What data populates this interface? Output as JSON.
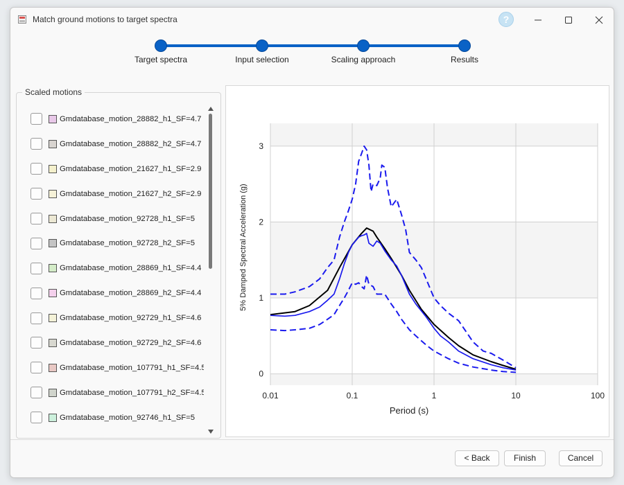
{
  "window": {
    "title": "Match ground motions to target spectra",
    "help_glyph": "?"
  },
  "stepper": {
    "steps": [
      {
        "label": "Target spectra"
      },
      {
        "label": "Input selection"
      },
      {
        "label": "Scaling approach"
      },
      {
        "label": "Results"
      }
    ],
    "accent": "#0a62c6"
  },
  "scaled_motions": {
    "title": "Scaled motions",
    "items": [
      {
        "label": "Gmdatabase_motion_28882_h1_SF=4.7",
        "swatch": "#e8c8e8",
        "checked": false
      },
      {
        "label": "Gmdatabase_motion_28882_h2_SF=4.7",
        "swatch": "#d8d4d0",
        "checked": false
      },
      {
        "label": "Gmdatabase_motion_21627_h1_SF=2.9",
        "swatch": "#f4f0cc",
        "checked": false
      },
      {
        "label": "Gmdatabase_motion_21627_h2_SF=2.9",
        "swatch": "#f6f2d8",
        "checked": false
      },
      {
        "label": "Gmdatabase_motion_92728_h1_SF=5",
        "swatch": "#ece8d4",
        "checked": false
      },
      {
        "label": "Gmdatabase_motion_92728_h2_SF=5",
        "swatch": "#c4c4c4",
        "checked": false
      },
      {
        "label": "Gmdatabase_motion_28869_h1_SF=4.4",
        "swatch": "#d4ecc8",
        "checked": false
      },
      {
        "label": "Gmdatabase_motion_28869_h2_SF=4.4",
        "swatch": "#f4d0ec",
        "checked": false
      },
      {
        "label": "Gmdatabase_motion_92729_h1_SF=4.6",
        "swatch": "#f4f2d8",
        "checked": false
      },
      {
        "label": "Gmdatabase_motion_92729_h2_SF=4.6",
        "swatch": "#d8d8d0",
        "checked": false
      },
      {
        "label": "Gmdatabase_motion_107791_h1_SF=4.5",
        "swatch": "#e8c8c4",
        "checked": false
      },
      {
        "label": "Gmdatabase_motion_107791_h2_SF=4.5",
        "swatch": "#d0d4cc",
        "checked": false
      },
      {
        "label": "Gmdatabase_motion_92746_h1_SF=5",
        "swatch": "#ccf0dc",
        "checked": false
      }
    ]
  },
  "chart_data": {
    "type": "line",
    "title": "",
    "xlabel": "Period (s)",
    "ylabel": "5% Damped Spectral Acceleration (g)",
    "xscale": "log",
    "xlim": [
      0.01,
      100
    ],
    "ylim": [
      -0.15,
      3.3
    ],
    "xticks": [
      0.01,
      0.1,
      1,
      10,
      100
    ],
    "xtick_labels": [
      "0.01",
      "0.1",
      "1",
      "10",
      "100"
    ],
    "yticks": [
      0,
      1,
      2,
      3
    ],
    "ytick_labels": [
      "0",
      "1",
      "2",
      "3"
    ],
    "grid": true,
    "legend": "none",
    "series": [
      {
        "color": "#000000",
        "style": "solid",
        "points": [
          [
            0.01,
            0.78
          ],
          [
            0.02,
            0.82
          ],
          [
            0.03,
            0.9
          ],
          [
            0.05,
            1.1
          ],
          [
            0.07,
            1.4
          ],
          [
            0.1,
            1.7
          ],
          [
            0.13,
            1.85
          ],
          [
            0.15,
            1.92
          ],
          [
            0.18,
            1.88
          ],
          [
            0.2,
            1.8
          ],
          [
            0.25,
            1.65
          ],
          [
            0.3,
            1.52
          ],
          [
            0.4,
            1.3
          ],
          [
            0.5,
            1.1
          ],
          [
            0.7,
            0.85
          ],
          [
            1,
            0.65
          ],
          [
            1.5,
            0.48
          ],
          [
            2,
            0.37
          ],
          [
            3,
            0.25
          ],
          [
            5,
            0.16
          ],
          [
            7,
            0.11
          ],
          [
            10,
            0.06
          ]
        ]
      },
      {
        "color": "#1a1aee",
        "style": "solid",
        "points": [
          [
            0.01,
            0.77
          ],
          [
            0.015,
            0.76
          ],
          [
            0.02,
            0.77
          ],
          [
            0.03,
            0.82
          ],
          [
            0.04,
            0.88
          ],
          [
            0.05,
            0.97
          ],
          [
            0.06,
            1.05
          ],
          [
            0.07,
            1.25
          ],
          [
            0.08,
            1.45
          ],
          [
            0.09,
            1.6
          ],
          [
            0.1,
            1.7
          ],
          [
            0.12,
            1.8
          ],
          [
            0.13,
            1.82
          ],
          [
            0.14,
            1.83
          ],
          [
            0.15,
            1.85
          ],
          [
            0.16,
            1.72
          ],
          [
            0.18,
            1.68
          ],
          [
            0.2,
            1.75
          ],
          [
            0.22,
            1.72
          ],
          [
            0.25,
            1.62
          ],
          [
            0.3,
            1.5
          ],
          [
            0.35,
            1.42
          ],
          [
            0.4,
            1.3
          ],
          [
            0.5,
            1.05
          ],
          [
            0.6,
            0.92
          ],
          [
            0.8,
            0.75
          ],
          [
            1,
            0.6
          ],
          [
            1.2,
            0.5
          ],
          [
            1.5,
            0.42
          ],
          [
            2,
            0.3
          ],
          [
            3,
            0.2
          ],
          [
            5,
            0.12
          ],
          [
            7,
            0.08
          ],
          [
            10,
            0.05
          ]
        ]
      },
      {
        "color": "#1a1aee",
        "style": "dashed",
        "points": [
          [
            0.01,
            1.05
          ],
          [
            0.015,
            1.05
          ],
          [
            0.02,
            1.08
          ],
          [
            0.03,
            1.15
          ],
          [
            0.04,
            1.25
          ],
          [
            0.05,
            1.4
          ],
          [
            0.06,
            1.5
          ],
          [
            0.07,
            1.8
          ],
          [
            0.08,
            2.0
          ],
          [
            0.09,
            2.15
          ],
          [
            0.1,
            2.3
          ],
          [
            0.11,
            2.5
          ],
          [
            0.12,
            2.8
          ],
          [
            0.13,
            2.9
          ],
          [
            0.14,
            3.0
          ],
          [
            0.15,
            2.95
          ],
          [
            0.16,
            2.75
          ],
          [
            0.17,
            2.4
          ],
          [
            0.18,
            2.5
          ],
          [
            0.2,
            2.48
          ],
          [
            0.22,
            2.58
          ],
          [
            0.23,
            2.75
          ],
          [
            0.25,
            2.72
          ],
          [
            0.27,
            2.45
          ],
          [
            0.3,
            2.2
          ],
          [
            0.35,
            2.3
          ],
          [
            0.4,
            2.1
          ],
          [
            0.45,
            1.9
          ],
          [
            0.5,
            1.6
          ],
          [
            0.6,
            1.5
          ],
          [
            0.7,
            1.4
          ],
          [
            0.8,
            1.25
          ],
          [
            1,
            1.0
          ],
          [
            1.2,
            0.9
          ],
          [
            1.5,
            0.8
          ],
          [
            2,
            0.7
          ],
          [
            3,
            0.42
          ],
          [
            4,
            0.3
          ],
          [
            5,
            0.27
          ],
          [
            7,
            0.18
          ],
          [
            10,
            0.08
          ]
        ]
      },
      {
        "color": "#1a1aee",
        "style": "dashed",
        "points": [
          [
            0.01,
            0.58
          ],
          [
            0.015,
            0.57
          ],
          [
            0.02,
            0.58
          ],
          [
            0.03,
            0.6
          ],
          [
            0.04,
            0.65
          ],
          [
            0.05,
            0.72
          ],
          [
            0.06,
            0.78
          ],
          [
            0.07,
            0.9
          ],
          [
            0.08,
            1.0
          ],
          [
            0.09,
            1.1
          ],
          [
            0.1,
            1.2
          ],
          [
            0.11,
            1.18
          ],
          [
            0.12,
            1.2
          ],
          [
            0.13,
            1.15
          ],
          [
            0.14,
            1.12
          ],
          [
            0.15,
            1.3
          ],
          [
            0.16,
            1.18
          ],
          [
            0.18,
            1.15
          ],
          [
            0.2,
            1.05
          ],
          [
            0.25,
            1.05
          ],
          [
            0.3,
            0.92
          ],
          [
            0.35,
            0.82
          ],
          [
            0.4,
            0.72
          ],
          [
            0.5,
            0.58
          ],
          [
            0.6,
            0.5
          ],
          [
            0.8,
            0.38
          ],
          [
            1,
            0.3
          ],
          [
            1.5,
            0.2
          ],
          [
            2,
            0.14
          ],
          [
            3,
            0.09
          ],
          [
            5,
            0.05
          ],
          [
            7,
            0.03
          ],
          [
            10,
            0.02
          ]
        ]
      }
    ]
  },
  "buttons": {
    "back": "< Back",
    "finish": "Finish",
    "cancel": "Cancel"
  }
}
